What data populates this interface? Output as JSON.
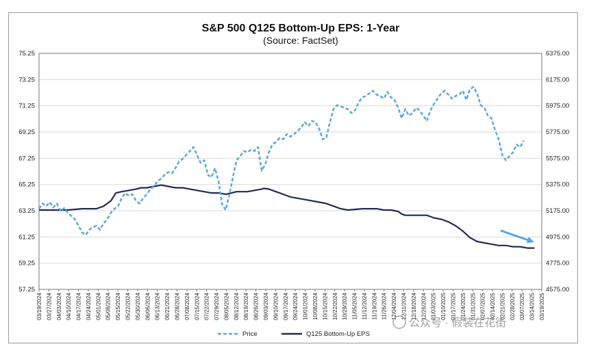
{
  "chart_data": {
    "type": "line",
    "title": "S&P 500 Q125 Bottom-Up EPS: 1-Year",
    "subtitle": "(Source: FactSet)",
    "y_left": {
      "ticks": [
        "75.25",
        "73.25",
        "71.25",
        "69.25",
        "67.25",
        "65.25",
        "63.25",
        "61.25",
        "59.25",
        "57.25"
      ],
      "ylim": [
        57.25,
        75.25
      ]
    },
    "y_right": {
      "ticks": [
        "6375.00",
        "6175.00",
        "5975.00",
        "5775.00",
        "5575.00",
        "5375.00",
        "5175.00",
        "4975.00",
        "4775.00",
        "4575.00"
      ],
      "ylim": [
        4575,
        6375
      ]
    },
    "x_ticks": [
      "03/19/2024",
      "03/27/2024",
      "04/03/2024",
      "04/10/2024",
      "04/17/2024",
      "04/24/2024",
      "05/01/2024",
      "05/08/2024",
      "05/15/2024",
      "05/22/2024",
      "05/30/2024",
      "06/06/2024",
      "06/13/2024",
      "06/21/2024",
      "06/28/2024",
      "07/08/2024",
      "07/15/2024",
      "07/22/2024",
      "07/29/2024",
      "08/05/2024",
      "08/12/2024",
      "08/19/2024",
      "08/26/2024",
      "09/03/2024",
      "09/10/2024",
      "09/17/2024",
      "09/24/2024",
      "10/01/2024",
      "10/08/2024",
      "10/15/2024",
      "10/22/2024",
      "10/29/2024",
      "11/05/2024",
      "11/12/2024",
      "11/19/2024",
      "11/26/2024",
      "12/04/2024",
      "12/11/2024",
      "12/18/2024",
      "12/26/2024",
      "01/03/2025",
      "01/10/2025",
      "01/17/2025",
      "01/24/2025",
      "01/31/2025",
      "02/07/2025",
      "02/14/2025",
      "02/21/2025",
      "02/28/2025",
      "03/07/2025",
      "03/14/2025",
      "03/19/2025"
    ],
    "series": [
      {
        "name": "Q125 Bottom-Up EPS",
        "axis": "left",
        "color": "#1f2a55",
        "style": "solid",
        "points": [
          [
            0,
            63.3
          ],
          [
            2,
            63.3
          ],
          [
            4,
            63.3
          ],
          [
            6,
            63.4
          ],
          [
            8,
            63.4
          ],
          [
            9,
            63.6
          ],
          [
            10,
            64.0
          ],
          [
            10.7,
            64.6
          ],
          [
            11.5,
            64.7
          ],
          [
            12.5,
            64.8
          ],
          [
            13.5,
            64.9
          ],
          [
            14.2,
            65.0
          ],
          [
            15,
            65.0
          ],
          [
            16,
            65.1
          ],
          [
            17,
            65.2
          ],
          [
            18,
            65.1
          ],
          [
            19,
            65.0
          ],
          [
            20,
            65.0
          ],
          [
            21,
            64.9
          ],
          [
            22,
            64.8
          ],
          [
            23,
            64.7
          ],
          [
            24,
            64.6
          ],
          [
            25,
            64.6
          ],
          [
            26,
            64.5
          ],
          [
            26.8,
            64.6
          ],
          [
            27.5,
            64.7
          ],
          [
            28,
            64.7
          ],
          [
            29,
            64.7
          ],
          [
            30,
            64.8
          ],
          [
            31,
            64.9
          ],
          [
            31.3,
            64.95
          ],
          [
            32,
            64.9
          ],
          [
            33,
            64.7
          ],
          [
            34,
            64.5
          ],
          [
            35,
            64.3
          ],
          [
            36,
            64.2
          ],
          [
            37,
            64.1
          ],
          [
            38,
            64.0
          ],
          [
            39,
            63.9
          ],
          [
            40,
            63.8
          ],
          [
            41,
            63.6
          ],
          [
            42,
            63.4
          ],
          [
            43,
            63.3
          ],
          [
            44,
            63.35
          ],
          [
            45,
            63.4
          ],
          [
            46,
            63.4
          ],
          [
            47,
            63.4
          ],
          [
            48,
            63.3
          ],
          [
            49,
            63.3
          ],
          [
            50,
            63.2
          ],
          [
            50.5,
            63.0
          ],
          [
            51,
            62.9
          ],
          [
            52,
            62.9
          ],
          [
            53,
            62.9
          ],
          [
            54,
            62.9
          ],
          [
            54.5,
            62.8
          ],
          [
            55,
            62.7
          ],
          [
            56,
            62.6
          ],
          [
            57,
            62.4
          ],
          [
            58,
            62.1
          ],
          [
            59,
            61.7
          ],
          [
            60,
            61.2
          ],
          [
            61,
            60.9
          ],
          [
            62,
            60.8
          ],
          [
            63,
            60.7
          ],
          [
            64,
            60.6
          ],
          [
            65,
            60.6
          ],
          [
            66,
            60.5
          ],
          [
            67,
            60.5
          ],
          [
            68,
            60.4
          ],
          [
            69,
            60.4
          ]
        ]
      },
      {
        "name": "Price",
        "axis": "right",
        "color": "#5aa6e0",
        "style": "dashed",
        "points": [
          [
            0,
            5190
          ],
          [
            0.5,
            5230
          ],
          [
            1,
            5210
          ],
          [
            1.5,
            5240
          ],
          [
            2,
            5200
          ],
          [
            2.5,
            5230
          ],
          [
            3,
            5170
          ],
          [
            3.5,
            5195
          ],
          [
            4,
            5160
          ],
          [
            5,
            5110
          ],
          [
            5.5,
            5060
          ],
          [
            6,
            5010
          ],
          [
            6.5,
            4990
          ],
          [
            7,
            5030
          ],
          [
            7.5,
            5050
          ],
          [
            8,
            5060
          ],
          [
            8.5,
            5030
          ],
          [
            9,
            5080
          ],
          [
            9.5,
            5110
          ],
          [
            10,
            5160
          ],
          [
            10.5,
            5190
          ],
          [
            11,
            5210
          ],
          [
            11.5,
            5270
          ],
          [
            12,
            5310
          ],
          [
            12.5,
            5290
          ],
          [
            13,
            5300
          ],
          [
            13.5,
            5250
          ],
          [
            14,
            5230
          ],
          [
            14.5,
            5270
          ],
          [
            15,
            5300
          ],
          [
            15.5,
            5340
          ],
          [
            16,
            5360
          ],
          [
            16.5,
            5400
          ],
          [
            17,
            5420
          ],
          [
            17.5,
            5450
          ],
          [
            18,
            5470
          ],
          [
            18.5,
            5460
          ],
          [
            19,
            5500
          ],
          [
            19.5,
            5550
          ],
          [
            20,
            5570
          ],
          [
            20.5,
            5600
          ],
          [
            21,
            5630
          ],
          [
            21.5,
            5660
          ],
          [
            22,
            5600
          ],
          [
            22.5,
            5540
          ],
          [
            23,
            5560
          ],
          [
            23.5,
            5450
          ],
          [
            24,
            5430
          ],
          [
            24.5,
            5500
          ],
          [
            25,
            5400
          ],
          [
            25.5,
            5220
          ],
          [
            26,
            5180
          ],
          [
            26.5,
            5300
          ],
          [
            27,
            5430
          ],
          [
            27.5,
            5560
          ],
          [
            28,
            5590
          ],
          [
            28.5,
            5630
          ],
          [
            29,
            5620
          ],
          [
            29.5,
            5640
          ],
          [
            30,
            5630
          ],
          [
            30.5,
            5660
          ],
          [
            31,
            5480
          ],
          [
            31.5,
            5530
          ],
          [
            32,
            5620
          ],
          [
            32.5,
            5680
          ],
          [
            33,
            5700
          ],
          [
            33.5,
            5730
          ],
          [
            34,
            5720
          ],
          [
            34.5,
            5760
          ],
          [
            35,
            5740
          ],
          [
            35.5,
            5760
          ],
          [
            36,
            5780
          ],
          [
            36.5,
            5810
          ],
          [
            37,
            5850
          ],
          [
            37.5,
            5820
          ],
          [
            38,
            5860
          ],
          [
            38.5,
            5850
          ],
          [
            39,
            5800
          ],
          [
            39.5,
            5720
          ],
          [
            40,
            5730
          ],
          [
            40.5,
            5850
          ],
          [
            41,
            5950
          ],
          [
            41.5,
            5980
          ],
          [
            42,
            5970
          ],
          [
            42.5,
            5960
          ],
          [
            43,
            5950
          ],
          [
            43.5,
            5920
          ],
          [
            44,
            5940
          ],
          [
            44.5,
            6000
          ],
          [
            45,
            6040
          ],
          [
            45.5,
            6050
          ],
          [
            46,
            6070
          ],
          [
            46.5,
            6090
          ],
          [
            47,
            6060
          ],
          [
            47.5,
            6050
          ],
          [
            48,
            6030
          ],
          [
            48.5,
            6080
          ],
          [
            49,
            6040
          ],
          [
            49.5,
            6020
          ],
          [
            50,
            5960
          ],
          [
            50.5,
            5880
          ],
          [
            51,
            5950
          ],
          [
            51.5,
            5900
          ],
          [
            52,
            5920
          ],
          [
            52.5,
            5960
          ],
          [
            53,
            5940
          ],
          [
            53.5,
            5900
          ],
          [
            54,
            5860
          ],
          [
            54.5,
            5940
          ],
          [
            55,
            5990
          ],
          [
            55.5,
            6030
          ],
          [
            56,
            6070
          ],
          [
            56.5,
            6090
          ],
          [
            57,
            6060
          ],
          [
            57.5,
            6030
          ],
          [
            58,
            6050
          ],
          [
            58.5,
            6060
          ],
          [
            59,
            6090
          ],
          [
            59.5,
            6020
          ],
          [
            60,
            6100
          ],
          [
            60.5,
            6120
          ],
          [
            61,
            6070
          ],
          [
            61.5,
            5980
          ],
          [
            62,
            5960
          ],
          [
            62.5,
            5900
          ],
          [
            63,
            5880
          ],
          [
            63.5,
            5790
          ],
          [
            64,
            5720
          ],
          [
            64.5,
            5600
          ],
          [
            65,
            5560
          ],
          [
            65.5,
            5590
          ],
          [
            66,
            5620
          ],
          [
            66.5,
            5680
          ],
          [
            67,
            5660
          ],
          [
            67.5,
            5710
          ]
        ]
      }
    ],
    "legend": {
      "position": "bottom",
      "entries": [
        "Price",
        "Q125 Bottom-Up EPS"
      ]
    },
    "annotation": "blue arrow pointing down-right at end of EPS line",
    "grid": {
      "horizontal": true,
      "vertical": false
    }
  },
  "watermark": "公众号 · 假装在花街"
}
